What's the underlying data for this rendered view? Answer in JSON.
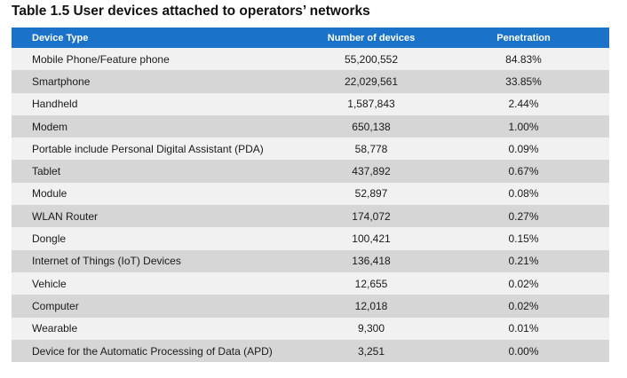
{
  "title": "Table 1.5 User devices attached to operators’ networks",
  "colors": {
    "header_bg": "#1b73c9",
    "header_text": "#ffffff",
    "row_light": "#f1f1f1",
    "row_dark": "#d6d6d6"
  },
  "table": {
    "headers": [
      "Device Type",
      "Number of devices",
      "Penetration"
    ],
    "rows": [
      [
        "Mobile Phone/Feature phone",
        "55,200,552",
        "84.83%"
      ],
      [
        "Smartphone",
        "22,029,561",
        "33.85%"
      ],
      [
        "Handheld",
        "1,587,843",
        "2.44%"
      ],
      [
        "Modem",
        "650,138",
        "1.00%"
      ],
      [
        "Portable include Personal Digital Assistant (PDA)",
        "58,778",
        "0.09%"
      ],
      [
        "Tablet",
        "437,892",
        "0.67%"
      ],
      [
        "Module",
        "52,897",
        "0.08%"
      ],
      [
        "WLAN Router",
        "174,072",
        "0.27%"
      ],
      [
        "Dongle",
        "100,421",
        "0.15%"
      ],
      [
        "Internet of Things (IoT) Devices",
        "136,418",
        "0.21%"
      ],
      [
        "Vehicle",
        "12,655",
        "0.02%"
      ],
      [
        "Computer",
        "12,018",
        "0.02%"
      ],
      [
        "Wearable",
        "9,300",
        "0.01%"
      ],
      [
        "Device for the Automatic Processing of Data (APD)",
        "3,251",
        "0.00%"
      ]
    ]
  }
}
